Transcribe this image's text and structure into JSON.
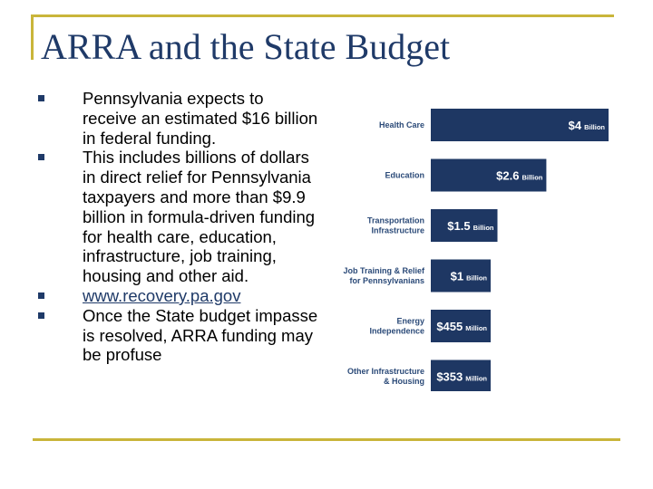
{
  "slide": {
    "title": "ARRA and the State Budget",
    "bullets": [
      "Pennsylvania expects to receive an estimated $16 billion in federal funding.",
      "This includes billions of dollars in direct relief for Pennsylvania taxpayers and more than $9.9 billion in formula-driven funding for health care, education, infrastructure, job training, housing and other aid.",
      "www.recovery.pa.gov",
      "Once the State budget impasse is resolved, ARRA funding may be profuse"
    ]
  },
  "colors": {
    "accent_frame": "#c9b53a",
    "title": "#1f3a68",
    "bar": "#1e3763",
    "category_text": "#2b4a78"
  },
  "chart_data": {
    "type": "bar",
    "orientation": "horizontal",
    "categories": [
      [
        "Health Care"
      ],
      [
        "Education"
      ],
      [
        "Transportation",
        "Infrastructure"
      ],
      [
        "Job Training & Relief",
        "for Pennsylvanians"
      ],
      [
        "Energy",
        "Independence"
      ],
      [
        "Other Infrastructure",
        "& Housing"
      ]
    ],
    "values_billions": [
      4,
      2.6,
      1.5,
      1,
      0.455,
      0.353
    ],
    "value_labels": [
      {
        "num": "$4",
        "unit": "Billion"
      },
      {
        "num": "$2.6",
        "unit": "Billion"
      },
      {
        "num": "$1.5",
        "unit": "Billion"
      },
      {
        "num": "$1",
        "unit": "Billion"
      },
      {
        "num": "$455",
        "unit": "Million"
      },
      {
        "num": "$353",
        "unit": "Million"
      }
    ]
  }
}
